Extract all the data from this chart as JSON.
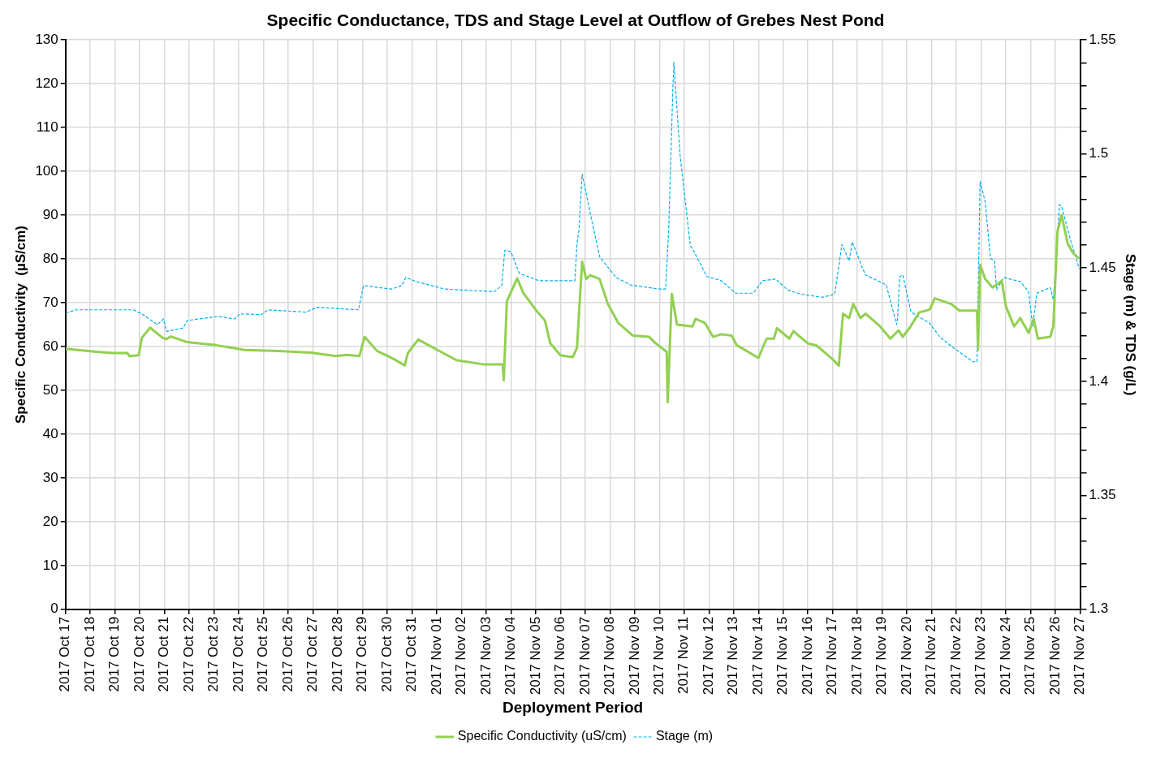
{
  "chart_data": {
    "type": "line",
    "title": "Specific Conductance, TDS and Stage Level at Outflow of Grebes Nest Pond",
    "xlabel": "Deployment Period",
    "ylabel": "Specific Conductivity  (µS/cm)",
    "y2label": "Stage (m) & TDS (g/L)",
    "xlim": [
      "2017-10-17",
      "2017-11-27"
    ],
    "xticks": [
      {
        "value": "2017-10-17",
        "label": "2017 Oct 17"
      },
      {
        "value": "2017-10-18",
        "label": "2017 Oct 18"
      },
      {
        "value": "2017-10-19",
        "label": "2017 Oct 19"
      },
      {
        "value": "2017-10-20",
        "label": "2017 Oct 20"
      },
      {
        "value": "2017-10-21",
        "label": "2017 Oct 21"
      },
      {
        "value": "2017-10-22",
        "label": "2017 Oct 22"
      },
      {
        "value": "2017-10-23",
        "label": "2017 Oct 23"
      },
      {
        "value": "2017-10-24",
        "label": "2017 Oct 24"
      },
      {
        "value": "2017-10-25",
        "label": "2017 Oct 25"
      },
      {
        "value": "2017-10-26",
        "label": "2017 Oct 26"
      },
      {
        "value": "2017-10-27",
        "label": "2017 Oct 27"
      },
      {
        "value": "2017-10-28",
        "label": "2017 Oct 28"
      },
      {
        "value": "2017-10-29",
        "label": "2017 Oct 29"
      },
      {
        "value": "2017-10-30",
        "label": "2017 Oct 30"
      },
      {
        "value": "2017-10-31",
        "label": "2017 Oct 31"
      },
      {
        "value": "2017-11-01",
        "label": "2017 Nov 01"
      },
      {
        "value": "2017-11-02",
        "label": "2017 Nov 02"
      },
      {
        "value": "2017-11-03",
        "label": "2017 Nov 03"
      },
      {
        "value": "2017-11-04",
        "label": "2017 Nov 04"
      },
      {
        "value": "2017-11-05",
        "label": "2017 Nov 05"
      },
      {
        "value": "2017-11-06",
        "label": "2017 Nov 06"
      },
      {
        "value": "2017-11-07",
        "label": "2017 Nov 07"
      },
      {
        "value": "2017-11-08",
        "label": "2017 Nov 08"
      },
      {
        "value": "2017-11-09",
        "label": "2017 Nov 09"
      },
      {
        "value": "2017-11-10",
        "label": "2017 Nov 10"
      },
      {
        "value": "2017-11-11",
        "label": "2017 Nov 11"
      },
      {
        "value": "2017-11-12",
        "label": "2017 Nov 12"
      },
      {
        "value": "2017-11-13",
        "label": "2017 Nov 13"
      },
      {
        "value": "2017-11-14",
        "label": "2017 Nov 14"
      },
      {
        "value": "2017-11-15",
        "label": "2017 Nov 15"
      },
      {
        "value": "2017-11-16",
        "label": "2017 Nov 16"
      },
      {
        "value": "2017-11-17",
        "label": "2017 Nov 17"
      },
      {
        "value": "2017-11-18",
        "label": "2017 Nov 18"
      },
      {
        "value": "2017-11-19",
        "label": "2017 Nov 19"
      },
      {
        "value": "2017-11-20",
        "label": "2017 Nov 20"
      },
      {
        "value": "2017-11-21",
        "label": "2017 Nov 21"
      },
      {
        "value": "2017-11-22",
        "label": "2017 Nov 22"
      },
      {
        "value": "2017-11-23",
        "label": "2017 Nov 23"
      },
      {
        "value": "2017-11-24",
        "label": "2017 Nov 24"
      },
      {
        "value": "2017-11-25",
        "label": "2017 Nov 25"
      },
      {
        "value": "2017-11-26",
        "label": "2017 Nov 26"
      },
      {
        "value": "2017-11-27",
        "label": "2017 Nov 27"
      }
    ],
    "ylim": [
      0,
      130
    ],
    "yticks": [
      0,
      10,
      20,
      30,
      40,
      50,
      60,
      70,
      80,
      90,
      100,
      110,
      120,
      130
    ],
    "y2lim": [
      1.3,
      1.55
    ],
    "y2ticks": [
      1.3,
      {
        "value": 1.31,
        "label": null
      },
      {
        "value": 1.32,
        "label": null
      },
      {
        "value": 1.33,
        "label": null
      },
      {
        "value": 1.34,
        "label": null
      },
      1.35,
      {
        "value": 1.36,
        "label": null
      },
      {
        "value": 1.37,
        "label": null
      },
      {
        "value": 1.38,
        "label": null
      },
      {
        "value": 1.39,
        "label": null
      },
      1.4,
      {
        "value": 1.41,
        "label": null
      },
      {
        "value": 1.42,
        "label": null
      },
      {
        "value": 1.43,
        "label": null
      },
      {
        "value": 1.44,
        "label": null
      },
      1.45,
      {
        "value": 1.46,
        "label": null
      },
      {
        "value": 1.47,
        "label": null
      },
      {
        "value": 1.48,
        "label": null
      },
      {
        "value": 1.49,
        "label": null
      },
      1.5,
      {
        "value": 1.51,
        "label": null
      },
      {
        "value": 1.52,
        "label": null
      },
      {
        "value": 1.53,
        "label": null
      },
      {
        "value": 1.54,
        "label": null
      },
      1.55
    ],
    "grid": true,
    "legend": "bottom",
    "marker": "none",
    "series": [
      {
        "name": "Specific Conductivity (uS/cm)",
        "color": "#92d050",
        "line_style": "solid",
        "x": [
          "2017-10-17T00:00",
          "2017-10-18T06:00",
          "2017-10-18T22:00",
          "2017-10-19T12:00",
          "2017-10-19T14:00",
          "2017-10-19T23:00",
          "2017-10-20T02:00",
          "2017-10-20T10:00",
          "2017-10-20T22:00",
          "2017-10-21T02:00",
          "2017-10-21T06:00",
          "2017-10-21T22:00",
          "2017-10-23T02:00",
          "2017-10-24T06:00",
          "2017-10-25T14:00",
          "2017-10-26T22:00",
          "2017-10-27T22:00",
          "2017-10-28T09:00",
          "2017-10-28T21:00",
          "2017-10-29T02:00",
          "2017-10-29T14:00",
          "2017-10-30T06:00",
          "2017-10-30T17:00",
          "2017-10-30T20:00",
          "2017-10-31T06:00",
          "2017-11-01T19:00",
          "2017-11-02T22:00",
          "2017-11-03T16:00",
          "2017-11-03T17:00",
          "2017-11-03T20:00",
          "2017-11-04T06:00",
          "2017-11-04T12:00",
          "2017-11-05T00:00",
          "2017-11-05T09:00",
          "2017-11-05T14:00",
          "2017-11-06T00:00",
          "2017-11-06T12:00",
          "2017-11-06T16:00",
          "2017-11-06T21:00",
          "2017-11-07T01:00",
          "2017-11-07T05:00",
          "2017-11-07T14:00",
          "2017-11-07T22:00",
          "2017-11-08T08:00",
          "2017-11-08T22:00",
          "2017-11-09T14:00",
          "2017-11-09T20:00",
          "2017-11-10T07:00",
          "2017-11-10T08:00",
          "2017-11-10T12:00",
          "2017-11-10T17:00",
          "2017-11-11T08:00",
          "2017-11-11T11:00",
          "2017-11-11T20:00",
          "2017-11-12T04:00",
          "2017-11-12T12:00",
          "2017-11-12T22:00",
          "2017-11-13T03:00",
          "2017-11-14T00:00",
          "2017-11-14T08:00",
          "2017-11-14T15:00",
          "2017-11-14T18:00",
          "2017-11-15T06:00",
          "2017-11-15T10:00",
          "2017-11-16T00:00",
          "2017-11-16T08:00",
          "2017-11-17T00:00",
          "2017-11-17T06:00",
          "2017-11-17T10:00",
          "2017-11-17T16:00",
          "2017-11-17T20:00",
          "2017-11-18T03:00",
          "2017-11-18T08:00",
          "2017-11-18T22:00",
          "2017-11-19T08:00",
          "2017-11-19T16:00",
          "2017-11-19T20:00",
          "2017-11-20T03:00",
          "2017-11-20T12:00",
          "2017-11-20T22:00",
          "2017-11-21T03:00",
          "2017-11-21T19:00",
          "2017-11-22T03:00",
          "2017-11-22T20:00",
          "2017-11-22T21:00",
          "2017-11-22T23:00",
          "2017-11-23T04:00",
          "2017-11-23T11:00",
          "2017-11-23T15:00",
          "2017-11-23T20:00",
          "2017-11-24T00:00",
          "2017-11-24T08:00",
          "2017-11-24T14:00",
          "2017-11-24T22:00",
          "2017-11-25T03:00",
          "2017-11-25T07:00",
          "2017-11-25T19:00",
          "2017-11-25T22:00",
          "2017-11-26T02:00",
          "2017-11-26T06:00",
          "2017-11-26T12:00",
          "2017-11-26T17:00",
          "2017-11-26T23:00"
        ],
        "values": [
          59.5,
          58.8,
          58.5,
          58.5,
          57.8,
          58.0,
          62,
          64.3,
          62,
          61.7,
          62.3,
          61,
          60.3,
          59.2,
          59,
          58.6,
          57.8,
          58.1,
          57.8,
          62.2,
          59,
          57.2,
          55.7,
          58.5,
          61.6,
          56.9,
          55.9,
          55.9,
          52.3,
          70.3,
          75.6,
          72.2,
          68.4,
          65.9,
          60.8,
          58,
          57.6,
          59.7,
          79.4,
          75.4,
          76.3,
          75.4,
          69.7,
          65.4,
          62.5,
          62.2,
          60.8,
          58.8,
          47.3,
          72,
          65,
          64.6,
          66.3,
          65.4,
          62.2,
          62.8,
          62.5,
          60.3,
          57.4,
          61.8,
          61.8,
          64.2,
          61.8,
          63.5,
          60.7,
          60.3,
          57.1,
          55.6,
          67.5,
          66.5,
          69.7,
          66.5,
          67.5,
          64.6,
          61.8,
          63.7,
          62.2,
          64.4,
          67.8,
          68.4,
          71,
          69.7,
          68.2,
          68.2,
          59.3,
          78.6,
          75.4,
          73.5,
          74.1,
          75,
          69.2,
          64.6,
          66.5,
          63.1,
          66.3,
          61.8,
          62.2,
          64.6,
          86.2,
          90,
          83.5,
          81.4,
          80.1
        ]
      },
      {
        "name": "Stage (m)",
        "color": "#00b0f0",
        "axis": "y2",
        "line_style": "dashed",
        "x": [
          "2017-10-17T00:00",
          "2017-10-17T10:00",
          "2017-10-19T18:00",
          "2017-10-20T03:00",
          "2017-10-20T17:00",
          "2017-10-20T23:00",
          "2017-10-21T02:00",
          "2017-10-21T18:00",
          "2017-10-21T22:00",
          "2017-10-23T04:00",
          "2017-10-23T20:00",
          "2017-10-24T01:00",
          "2017-10-24T22:00",
          "2017-10-25T04:00",
          "2017-10-26T17:00",
          "2017-10-27T04:00",
          "2017-10-28T20:00",
          "2017-10-29T01:00",
          "2017-10-30T04:00",
          "2017-10-30T14:00",
          "2017-10-30T18:00",
          "2017-10-31T04:00",
          "2017-11-01T08:00",
          "2017-11-03T08:00",
          "2017-11-03T15:00",
          "2017-11-03T18:00",
          "2017-11-04T00:00",
          "2017-11-04T08:00",
          "2017-11-05T03:00",
          "2017-11-06T14:00",
          "2017-11-06T16:00",
          "2017-11-06T18:00",
          "2017-11-06T21:00",
          "2017-11-07T06:00",
          "2017-11-07T14:00",
          "2017-11-08T06:00",
          "2017-11-08T20:00",
          "2017-11-10T00:00",
          "2017-11-10T06:00",
          "2017-11-10T09:00",
          "2017-11-10T13:00",
          "2017-11-10T14:00",
          "2017-11-10T20:00",
          "2017-11-11T03:00",
          "2017-11-11T06:00",
          "2017-11-11T08:00",
          "2017-11-11T22:00",
          "2017-11-12T12:00",
          "2017-11-13T02:00",
          "2017-11-13T12:00",
          "2017-11-13T19:00",
          "2017-11-14T04:00",
          "2017-11-14T17:00",
          "2017-11-15T04:00",
          "2017-11-15T17:00",
          "2017-11-16T14:00",
          "2017-11-17T02:00",
          "2017-11-17T09:00",
          "2017-11-17T16:00",
          "2017-11-17T19:00",
          "2017-11-18T05:00",
          "2017-11-18T08:00",
          "2017-11-19T04:00",
          "2017-11-19T12:00",
          "2017-11-19T14:00",
          "2017-11-19T15:00",
          "2017-11-19T17:00",
          "2017-11-19T20:00",
          "2017-11-20T04:00",
          "2017-11-20T22:00",
          "2017-11-21T08:00",
          "2017-11-21T20:00",
          "2017-11-22T16:00",
          "2017-11-22T20:00",
          "2017-11-22T23:00",
          "2017-11-23T04:00",
          "2017-11-23T09:00",
          "2017-11-23T13:00",
          "2017-11-23T15:00",
          "2017-11-23T22:00",
          "2017-11-24T14:00",
          "2017-11-24T22:00",
          "2017-11-25T02:00",
          "2017-11-25T06:00",
          "2017-11-25T19:00",
          "2017-11-25T22:00",
          "2017-11-26T04:00",
          "2017-11-26T06:00",
          "2017-11-26T14:00",
          "2017-11-26T23:00"
        ],
        "values": [
          1.43,
          1.4315,
          1.4315,
          1.4294,
          1.425,
          1.4275,
          1.422,
          1.4235,
          1.4268,
          1.4286,
          1.4275,
          1.4297,
          1.4294,
          1.4315,
          1.4305,
          1.4326,
          1.4315,
          1.4421,
          1.4406,
          1.4421,
          1.4457,
          1.4439,
          1.4406,
          1.4395,
          1.4421,
          1.4577,
          1.457,
          1.4475,
          1.4443,
          1.4443,
          1.4606,
          1.4668,
          1.4911,
          1.4715,
          1.4548,
          1.4457,
          1.4424,
          1.4406,
          1.4406,
          1.4668,
          1.5286,
          1.5402,
          1.4995,
          1.4715,
          1.4595,
          1.4584,
          1.4461,
          1.4443,
          1.4388,
          1.4388,
          1.4388,
          1.4443,
          1.445,
          1.4403,
          1.4384,
          1.437,
          1.4384,
          1.4602,
          1.453,
          1.4613,
          1.4497,
          1.4468,
          1.4424,
          1.4286,
          1.425,
          1.4279,
          1.4461,
          1.4468,
          1.4305,
          1.4257,
          1.4195,
          1.4152,
          1.4087,
          1.4087,
          1.4879,
          1.4788,
          1.4541,
          1.453,
          1.4403,
          1.4457,
          1.4439,
          1.4395,
          1.4243,
          1.4388,
          1.4413,
          1.4359,
          1.4777,
          1.477,
          1.4632,
          1.4497
        ]
      }
    ]
  }
}
